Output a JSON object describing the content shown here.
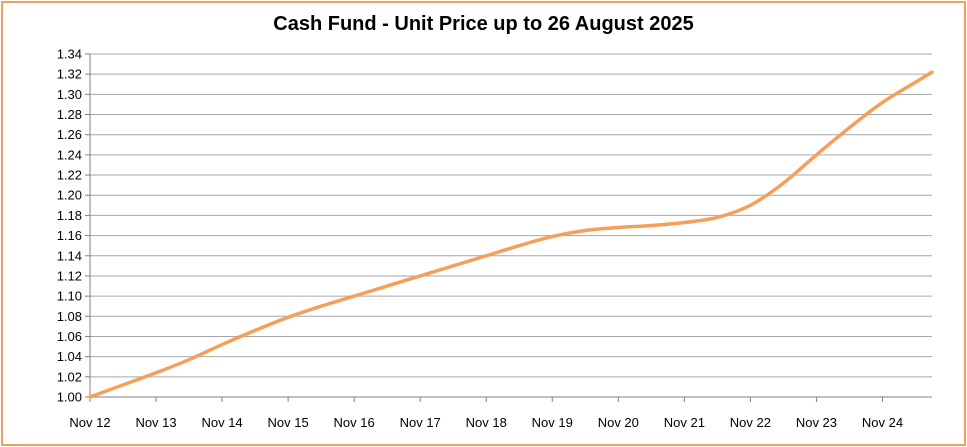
{
  "chart_data": {
    "type": "line",
    "title": "Cash Fund - Unit Price up to 26 August 2025",
    "xlabel": "",
    "ylabel": "",
    "categories": [
      "Nov 12",
      "Nov 13",
      "Nov 14",
      "Nov 15",
      "Nov 16",
      "Nov 17",
      "Nov 18",
      "Nov 19",
      "Nov 20",
      "Nov 21",
      "Nov 22",
      "Nov 23",
      "Nov 24"
    ],
    "y_ticks": [
      "1.00",
      "1.02",
      "1.04",
      "1.06",
      "1.08",
      "1.10",
      "1.12",
      "1.14",
      "1.16",
      "1.18",
      "1.20",
      "1.22",
      "1.24",
      "1.26",
      "1.28",
      "1.30",
      "1.32",
      "1.34"
    ],
    "ylim": [
      1.0,
      1.34
    ],
    "grid": true,
    "series": [
      {
        "color": "#f4a05a",
        "x": [
          0,
          0.5,
          1,
          1.5,
          2,
          2.5,
          3,
          3.5,
          4,
          4.5,
          5,
          5.5,
          6,
          6.5,
          7,
          7.5,
          8,
          8.5,
          9,
          9.5,
          10,
          10.5,
          11,
          11.5,
          12,
          12.5,
          12.75
        ],
        "values": [
          1.0,
          1.012,
          1.024,
          1.037,
          1.052,
          1.066,
          1.079,
          1.09,
          1.1,
          1.11,
          1.12,
          1.13,
          1.14,
          1.15,
          1.159,
          1.165,
          1.168,
          1.17,
          1.173,
          1.178,
          1.19,
          1.212,
          1.24,
          1.267,
          1.292,
          1.312,
          1.322
        ]
      }
    ]
  }
}
